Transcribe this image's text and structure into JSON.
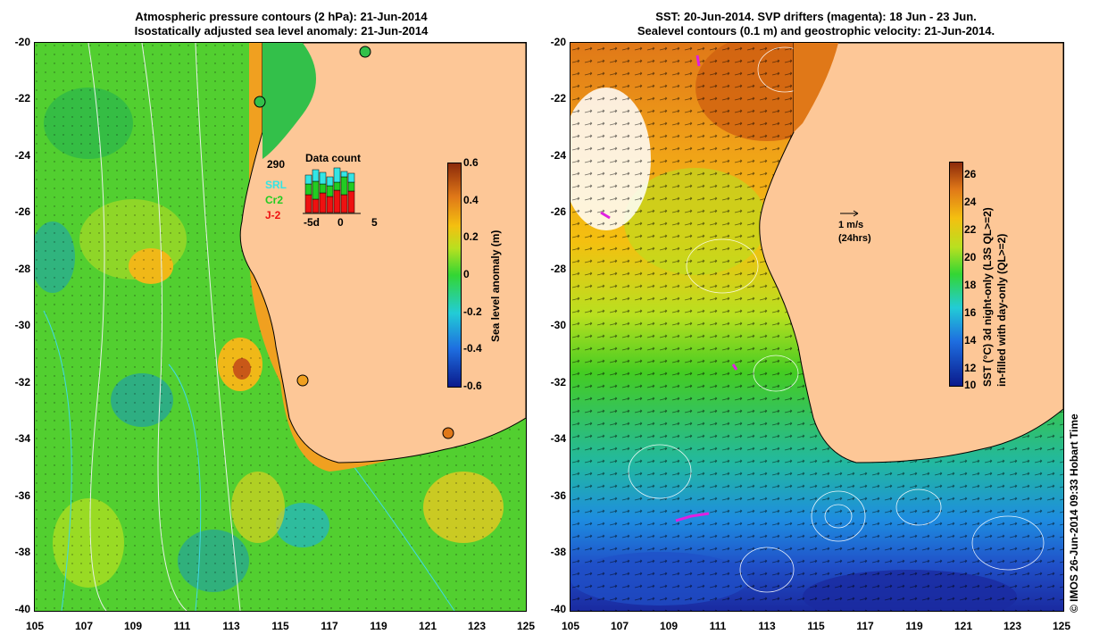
{
  "left_panel": {
    "title_line1": "Atmospheric pressure contours (2 hPa): 21-Jun-2014",
    "title_line2": "Isostatically adjusted sea level anomaly: 21-Jun-2014",
    "colorbar": {
      "label": "Sea level anomaly (m)",
      "ticks": [
        "0.6",
        "0.4",
        "0.2",
        "0",
        "-0.2",
        "-0.4",
        "-0.6"
      ]
    },
    "data_count": {
      "title": "Data count",
      "total": "290",
      "series": [
        {
          "name": "SRL",
          "color": "#33e5e5"
        },
        {
          "name": "Cr2",
          "color": "#22cc22"
        },
        {
          "name": "J-2",
          "color": "#ee1111"
        }
      ],
      "x_ticks": [
        "-5d",
        "0",
        "5"
      ]
    }
  },
  "right_panel": {
    "title_line1": "SST: 20-Jun-2014. SVP drifters (magenta): 18 Jun - 23 Jun.",
    "title_line2": "Sealevel contours (0.1 m) and geostrophic velocity: 21-Jun-2014.",
    "velocity_scale": {
      "speed": "1 m/s",
      "duration": "(24hrs)"
    },
    "colorbar": {
      "label_line1": "SST (°C) 3d night-only (L3S QL>=2)",
      "label_line2": "in-filled with day-only (QL>=2)",
      "ticks": [
        "26",
        "24",
        "22",
        "20",
        "18",
        "16",
        "14",
        "12",
        "10"
      ]
    }
  },
  "axes": {
    "y_ticks": [
      "-20",
      "-22",
      "-24",
      "-26",
      "-28",
      "-30",
      "-32",
      "-34",
      "-36",
      "-38",
      "-40"
    ],
    "x_ticks": [
      "105",
      "107",
      "109",
      "111",
      "113",
      "115",
      "117",
      "119",
      "121",
      "123",
      "125"
    ]
  },
  "credit": "© IMOS 26-Jun-2014 09:33 Hobart Time",
  "colors": {
    "land": "#fdc797",
    "sla_mid": "#33d633",
    "sst_warm": "#e07818",
    "sst_cold": "#1e6ee0"
  }
}
